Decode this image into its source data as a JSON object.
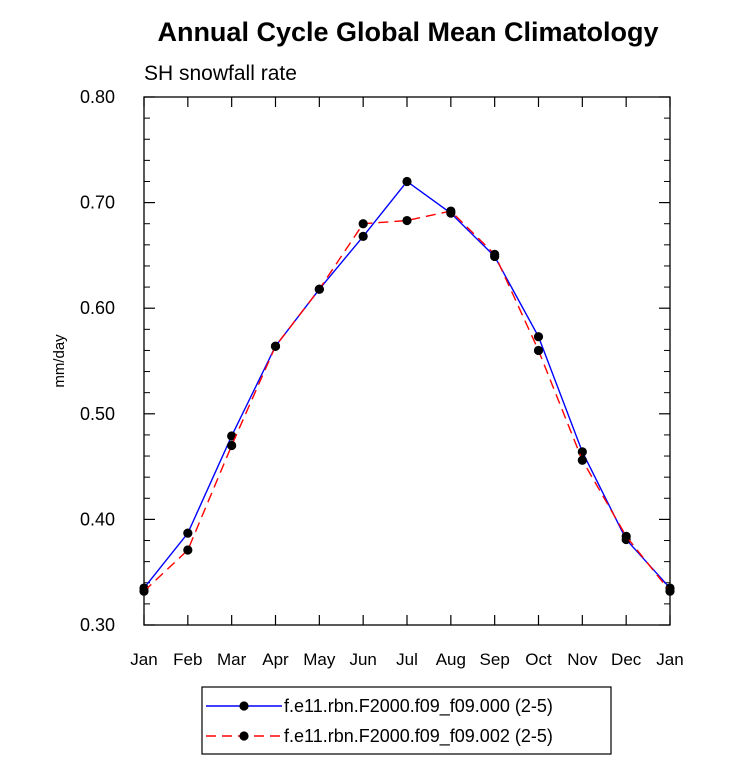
{
  "chart_data": {
    "type": "line",
    "title": "Annual Cycle Global Mean Climatology",
    "subtitle": "SH snowfall rate",
    "xlabel": "",
    "ylabel": "mm/day",
    "categories": [
      "Jan",
      "Feb",
      "Mar",
      "Apr",
      "May",
      "Jun",
      "Jul",
      "Aug",
      "Sep",
      "Oct",
      "Nov",
      "Dec",
      "Jan"
    ],
    "ylim": [
      0.3,
      0.8
    ],
    "yticks": [
      "0.30",
      "0.40",
      "0.50",
      "0.60",
      "0.70",
      "0.80"
    ],
    "grid": false,
    "legend_position": "bottom-center",
    "series": [
      {
        "name": "f.e11.rbn.F2000.f09_f09.000 (2-5)",
        "color": "#0000ff",
        "line_style": "solid",
        "values": [
          0.335,
          0.387,
          0.479,
          0.564,
          0.618,
          0.668,
          0.72,
          0.69,
          0.649,
          0.573,
          0.464,
          0.381,
          0.335
        ]
      },
      {
        "name": "f.e11.rbn.F2000.f09_f09.002 (2-5)",
        "color": "#ff0000",
        "line_style": "dashed",
        "values": [
          0.332,
          0.371,
          0.47,
          0.564,
          0.618,
          0.68,
          0.683,
          0.692,
          0.651,
          0.56,
          0.456,
          0.384,
          0.332
        ]
      }
    ]
  }
}
